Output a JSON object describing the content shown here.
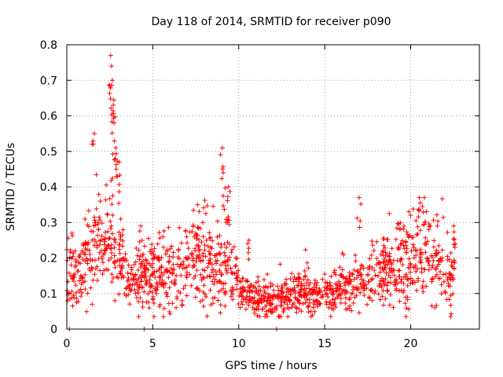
{
  "chart_data": {
    "type": "scatter",
    "title": "Day 118 of 2014, SRMTID for receiver p090",
    "xlabel": "GPS time / hours",
    "ylabel": "SRMTID / TECUs",
    "xlim": [
      0,
      24
    ],
    "ylim": [
      0,
      0.8
    ],
    "grid": true,
    "x_ticks": [
      0,
      5,
      10,
      15,
      20
    ],
    "y_ticks": [
      0,
      0.1,
      0.2,
      0.3,
      0.4,
      0.5,
      0.6,
      0.7,
      0.8
    ],
    "x_tick_labels": [
      "0",
      "5",
      "10",
      "15",
      "20"
    ],
    "y_tick_labels": [
      "0",
      "0.1",
      "0.2",
      "0.3",
      "0.4",
      "0.5",
      "0.6",
      "0.7",
      "0.8"
    ],
    "marker": "+",
    "series_color": "#ff0000",
    "zero_points_x": [
      0.15,
      4.5,
      12.2
    ],
    "peaks": [
      {
        "x": 0.3,
        "y": 0.27
      },
      {
        "x": 1.6,
        "y": 0.55
      },
      {
        "x": 2.55,
        "y": 0.77
      },
      {
        "x": 2.6,
        "y": 0.74
      },
      {
        "x": 2.65,
        "y": 0.7
      },
      {
        "x": 2.7,
        "y": 0.63
      },
      {
        "x": 2.75,
        "y": 0.58
      },
      {
        "x": 2.85,
        "y": 0.51
      },
      {
        "x": 3.05,
        "y": 0.47
      },
      {
        "x": 4.3,
        "y": 0.29
      },
      {
        "x": 7.6,
        "y": 0.35
      },
      {
        "x": 9.05,
        "y": 0.51
      },
      {
        "x": 9.1,
        "y": 0.44
      },
      {
        "x": 9.4,
        "y": 0.4
      },
      {
        "x": 10.6,
        "y": 0.25
      },
      {
        "x": 17.0,
        "y": 0.37
      },
      {
        "x": 19.9,
        "y": 0.33
      },
      {
        "x": 20.5,
        "y": 0.37
      },
      {
        "x": 20.8,
        "y": 0.37
      },
      {
        "x": 22.5,
        "y": 0.29
      }
    ],
    "profile": [
      [
        0.0,
        0.13
      ],
      [
        0.5,
        0.15
      ],
      [
        1.0,
        0.17
      ],
      [
        1.5,
        0.22
      ],
      [
        2.0,
        0.24
      ],
      [
        2.5,
        0.28
      ],
      [
        3.0,
        0.22
      ],
      [
        3.5,
        0.14
      ],
      [
        4.0,
        0.13
      ],
      [
        4.5,
        0.14
      ],
      [
        5.0,
        0.15
      ],
      [
        5.5,
        0.15
      ],
      [
        6.0,
        0.14
      ],
      [
        6.5,
        0.16
      ],
      [
        7.0,
        0.17
      ],
      [
        7.5,
        0.2
      ],
      [
        8.0,
        0.21
      ],
      [
        8.5,
        0.17
      ],
      [
        9.0,
        0.19
      ],
      [
        9.5,
        0.17
      ],
      [
        10.0,
        0.11
      ],
      [
        11.0,
        0.09
      ],
      [
        12.0,
        0.08
      ],
      [
        13.0,
        0.1
      ],
      [
        14.0,
        0.1
      ],
      [
        15.0,
        0.1
      ],
      [
        16.0,
        0.11
      ],
      [
        17.0,
        0.13
      ],
      [
        18.0,
        0.16
      ],
      [
        19.0,
        0.17
      ],
      [
        20.0,
        0.2
      ],
      [
        21.0,
        0.21
      ],
      [
        22.0,
        0.17
      ],
      [
        22.6,
        0.17
      ]
    ],
    "x_range_observed": [
      0.0,
      22.6
    ],
    "n_points_approx": 1500
  }
}
